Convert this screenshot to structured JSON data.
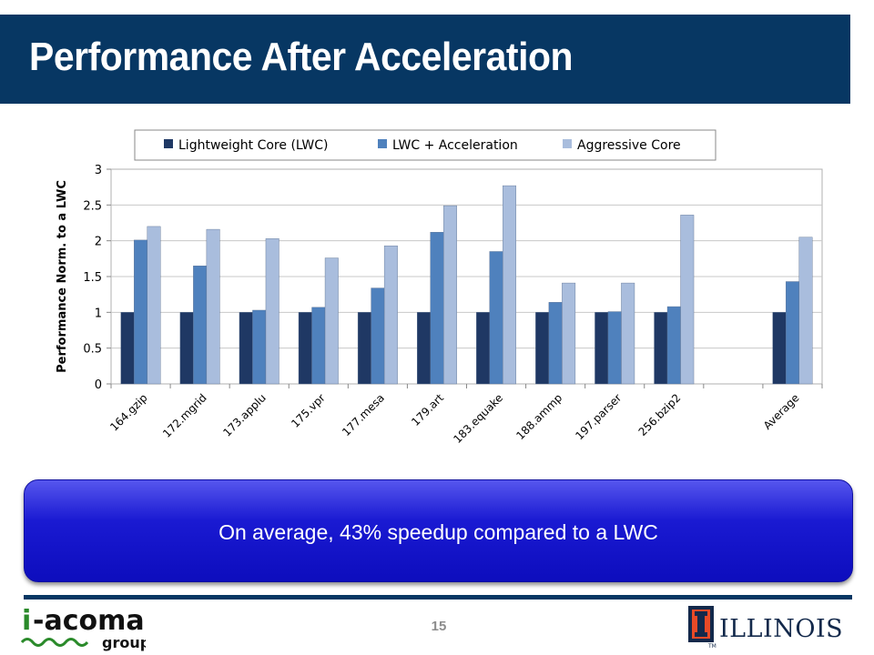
{
  "slide": {
    "title": "Performance After Acceleration",
    "callout": "On average, 43% speedup compared to a LWC",
    "page_number": "15"
  },
  "logos": {
    "left": "i-acoma group",
    "right": "ILLINOIS"
  },
  "colors": {
    "title_bar": "#073763",
    "series": [
      "#1f3864",
      "#4f81bd",
      "#a9bddd"
    ],
    "callout": "#1a1ad2"
  },
  "chart_data": {
    "type": "bar",
    "categories": [
      "164.gzip",
      "172.mgrid",
      "173.applu",
      "175.vpr",
      "177.mesa",
      "179.art",
      "183.equake",
      "188.ammp",
      "197.parser",
      "256.bzip2",
      "",
      "Average"
    ],
    "series": [
      {
        "name": "Lightweight Core (LWC)",
        "values": [
          1,
          1,
          1,
          1,
          1,
          1,
          1,
          1,
          1,
          1,
          null,
          1
        ]
      },
      {
        "name": "LWC + Acceleration",
        "values": [
          2.01,
          1.65,
          1.03,
          1.07,
          1.34,
          2.12,
          1.85,
          1.14,
          1.01,
          1.08,
          null,
          1.43
        ]
      },
      {
        "name": "Aggressive Core",
        "values": [
          2.2,
          2.16,
          2.03,
          1.76,
          1.93,
          2.49,
          2.77,
          1.41,
          1.41,
          2.36,
          null,
          2.05
        ]
      }
    ],
    "ylabel": "Performance Norm. to a LWC",
    "xlabel": "",
    "ylim": [
      0,
      3
    ],
    "yticks": [
      0,
      0.5,
      1,
      1.5,
      2,
      2.5,
      3
    ],
    "ytick_labels": [
      "0",
      "0.5",
      "1",
      "1.5",
      "2",
      "2.5",
      "3"
    ],
    "grid": true,
    "legend": "top"
  }
}
